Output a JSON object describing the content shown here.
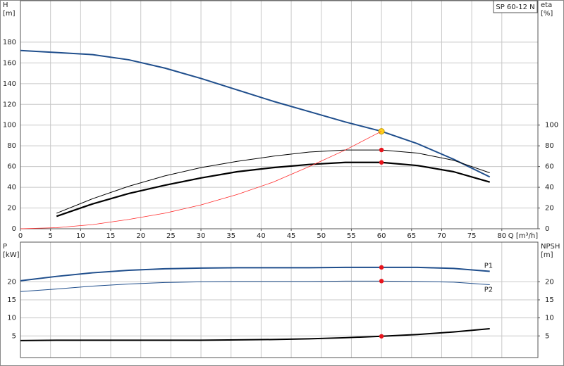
{
  "chart_data": [
    {
      "type": "line",
      "title": "SP 60-12 N",
      "ylabel": [
        "H",
        "[m]"
      ],
      "y2label": [
        "eta",
        "[%]"
      ],
      "xlabel": "Q [m³/h]",
      "xlim": [
        0,
        86
      ],
      "xticks": [
        0,
        5,
        10,
        15,
        20,
        25,
        30,
        35,
        40,
        45,
        50,
        55,
        60,
        65,
        70,
        75,
        80
      ],
      "ylim": [
        0,
        220
      ],
      "yticks": [
        0,
        20,
        40,
        60,
        80,
        100,
        120,
        140,
        160,
        180
      ],
      "y2lim": [
        0,
        220
      ],
      "y2ticks": [
        0,
        20,
        40,
        60,
        80,
        100
      ],
      "grid": true,
      "duty_q": 60,
      "series": [
        {
          "color": "#1f4e8c",
          "width": 2,
          "marker_color": "#ffd21f",
          "x": [
            0,
            6,
            12,
            18,
            24,
            30,
            36,
            42,
            48,
            54,
            60,
            66,
            72,
            78
          ],
          "values": [
            172,
            170,
            168,
            163,
            155,
            145,
            134,
            123,
            113,
            103,
            94,
            82,
            67,
            50
          ]
        },
        {
          "color": "#000000",
          "width": 1,
          "axis": "y2",
          "marker_color": "#e8141c",
          "x": [
            6,
            12,
            18,
            24,
            30,
            36,
            42,
            48,
            54,
            60,
            66,
            72,
            78
          ],
          "values": [
            15,
            29,
            41,
            51,
            59,
            65,
            70,
            74,
            76,
            76,
            73,
            66,
            54
          ]
        },
        {
          "color": "#000000",
          "width": 2.2,
          "axis": "y2",
          "marker_color": "#e8141c",
          "x": [
            6,
            12,
            18,
            24,
            30,
            36,
            42,
            48,
            54,
            60,
            66,
            72,
            78
          ],
          "values": [
            12,
            24,
            34,
            42,
            49,
            55,
            59,
            62,
            64,
            64,
            61,
            55,
            45
          ]
        },
        {
          "color": "#ff2a2a",
          "width": 0.8,
          "x": [
            0,
            6,
            12,
            18,
            24,
            30,
            36,
            42,
            48,
            54,
            60
          ],
          "values": [
            0,
            1,
            4,
            9,
            15,
            23,
            33,
            45,
            60,
            76,
            94
          ]
        }
      ]
    },
    {
      "type": "line",
      "ylabel": [
        "P",
        "[kW]"
      ],
      "y2label": [
        "NPSH",
        "[m]"
      ],
      "xlim": [
        0,
        86
      ],
      "xticks": [
        0,
        5,
        10,
        15,
        20,
        25,
        30,
        35,
        40,
        45,
        50,
        55,
        60,
        65,
        70,
        75,
        80
      ],
      "ylim": [
        -1,
        31
      ],
      "yticks": [
        5,
        10,
        15,
        20
      ],
      "y2lim": [
        -1,
        31
      ],
      "y2ticks": [
        5,
        10,
        15,
        20
      ],
      "grid": true,
      "duty_q": 60,
      "series": [
        {
          "name": "P1",
          "color": "#1f4e8c",
          "width": 2,
          "marker_color": "#e8141c",
          "x": [
            0,
            6,
            12,
            18,
            24,
            30,
            36,
            42,
            48,
            54,
            60,
            66,
            72,
            78
          ],
          "values": [
            20.3,
            21.5,
            22.5,
            23.2,
            23.6,
            23.8,
            23.9,
            23.9,
            23.9,
            24,
            24,
            24,
            23.7,
            22.9
          ]
        },
        {
          "name": "P2",
          "color": "#1f4e8c",
          "width": 1,
          "marker_color": "#e8141c",
          "x": [
            0,
            6,
            12,
            18,
            24,
            30,
            36,
            42,
            48,
            54,
            60,
            66,
            72,
            78
          ],
          "values": [
            17.3,
            18,
            18.8,
            19.4,
            19.8,
            20,
            20.1,
            20.1,
            20.1,
            20.2,
            20.2,
            20.1,
            19.9,
            19.2
          ]
        },
        {
          "color": "#000000",
          "width": 2,
          "axis": "y2",
          "marker_color": "#e8141c",
          "x": [
            0,
            6,
            12,
            18,
            24,
            30,
            36,
            42,
            48,
            54,
            60,
            66,
            72,
            78
          ],
          "values": [
            3.7,
            3.8,
            3.8,
            3.8,
            3.8,
            3.8,
            3.9,
            4,
            4.2,
            4.5,
            4.9,
            5.4,
            6.1,
            7
          ]
        }
      ]
    }
  ]
}
